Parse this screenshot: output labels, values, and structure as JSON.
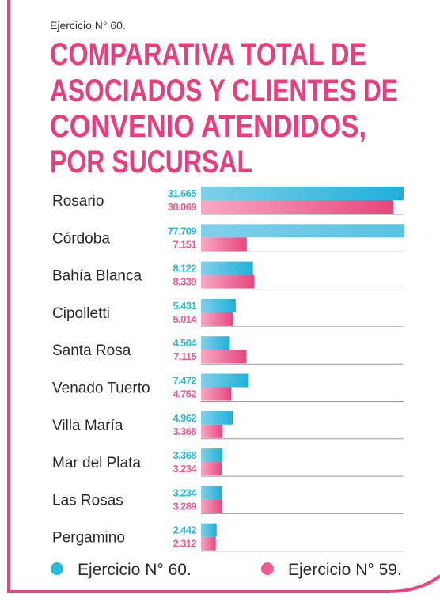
{
  "chart_data": {
    "type": "bar",
    "orientation": "horizontal",
    "header": "Ejercicio N° 60.",
    "title": [
      "COMPARATIVA TOTAL DE",
      "ASOCIADOS Y CLIENTES DE",
      "CONVENIO ATENDIDOS,",
      "POR SUCURSAL"
    ],
    "categories": [
      "Rosario",
      "Córdoba",
      "Bahía Blanca",
      "Cipolletti",
      "Santa Rosa",
      "Venado Tuerto",
      "Villa María",
      "Mar del Plata",
      "Las Rosas",
      "Pergamino"
    ],
    "series": [
      {
        "name": "Ejercicio N° 60.",
        "color": "#2bb8dc",
        "values": [
          31665,
          77709,
          8122,
          5431,
          4504,
          7472,
          4962,
          3368,
          3234,
          2442
        ],
        "value_labels": [
          "31.665",
          "77.709",
          "8.122",
          "5.431",
          "4.504",
          "7.472",
          "4.962",
          "3.368",
          "3.234",
          "2.442"
        ]
      },
      {
        "name": "Ejercicio N° 59.",
        "color": "#ee5b94",
        "values": [
          30069,
          7151,
          8339,
          5014,
          7115,
          4752,
          3368,
          3234,
          3289,
          2312
        ],
        "value_labels": [
          "30.069",
          "7.151",
          "8.339",
          "5.014",
          "7.115",
          "4.752",
          "3.368",
          "3.234",
          "3.289",
          "2.312"
        ]
      }
    ],
    "legend": "bottom"
  }
}
